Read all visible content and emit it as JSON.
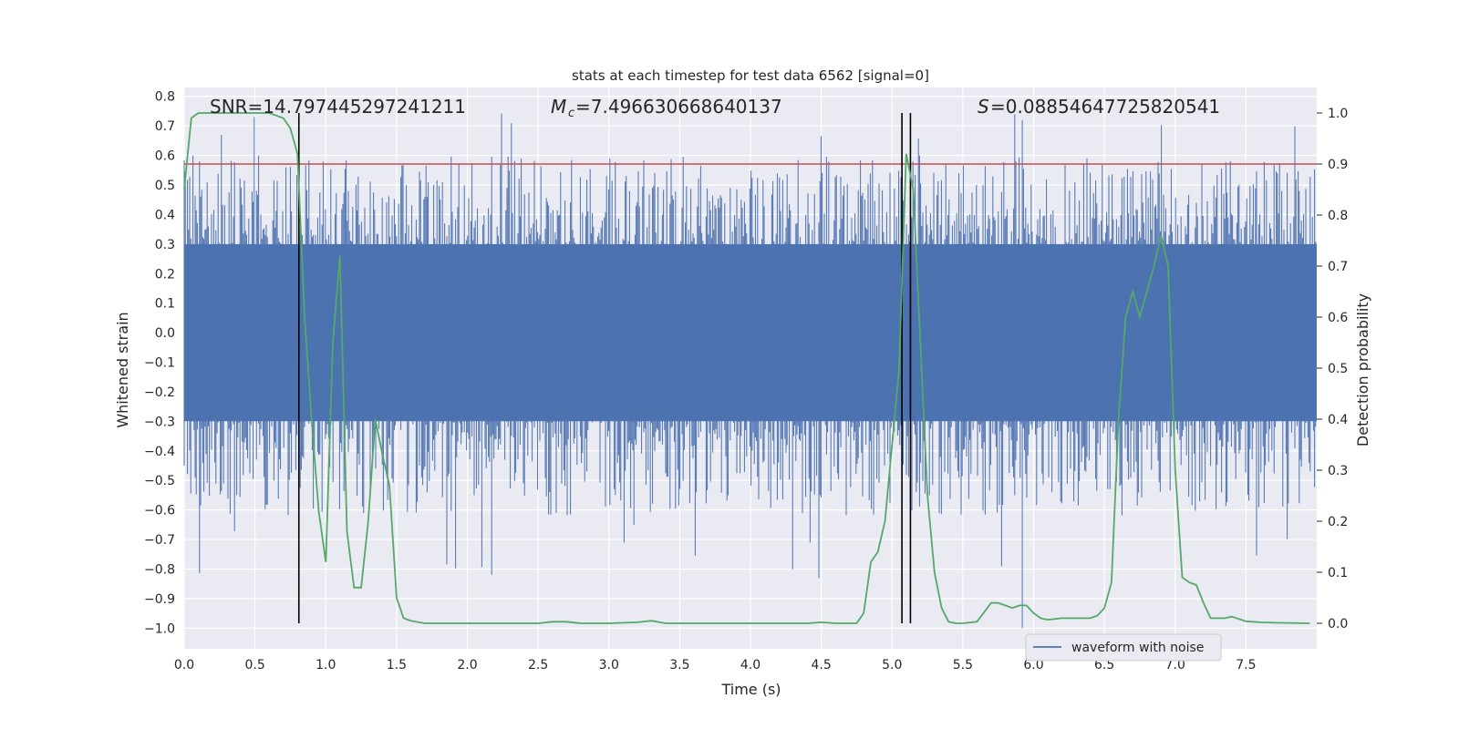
{
  "chart_data": {
    "type": "line",
    "title": "stats at each timestep for test data 6562 [signal=0]",
    "xlabel": "Time (s)",
    "ylabel": "Whitened strain",
    "y2label": "Detection probability",
    "xlim": [
      0.0,
      8.0
    ],
    "ylim": [
      -1.07,
      0.83
    ],
    "y2lim": [
      -0.05,
      1.05
    ],
    "xticks": [
      "0.0",
      "0.5",
      "1.0",
      "1.5",
      "2.0",
      "2.5",
      "3.0",
      "3.5",
      "4.0",
      "4.5",
      "5.0",
      "5.5",
      "6.0",
      "6.5",
      "7.0",
      "7.5"
    ],
    "yticks": [
      "0.8",
      "0.7",
      "0.6",
      "0.5",
      "0.4",
      "0.3",
      "0.2",
      "0.1",
      "0.0",
      "-0.1",
      "-0.2",
      "-0.3",
      "-0.4",
      "-0.5",
      "-0.6",
      "-0.7",
      "-0.8",
      "-0.9",
      "-1.0"
    ],
    "y2ticks": [
      "1.0",
      "0.9",
      "0.8",
      "0.7",
      "0.6",
      "0.5",
      "0.4",
      "0.3",
      "0.2",
      "0.1",
      "0.0"
    ],
    "grid": true,
    "legend": {
      "placement": "lower-right",
      "entries": [
        "waveform with noise"
      ]
    },
    "annotations": {
      "snr": "SNR=14.797445297241211",
      "mc": "=7.496630668640137",
      "s": "=0.08854647725820541"
    },
    "threshold_probability": 0.9,
    "vertical_lines_time": [
      0.81,
      5.07,
      5.13
    ],
    "colors": {
      "waveform": "#4c72b0",
      "probability": "#55a868",
      "threshold": "#c44e52",
      "marker": "#000000",
      "plot_bg": "#eaeaf2"
    },
    "series": [
      {
        "name": "waveform with noise",
        "envelope": {
          "typical_range": [
            -0.3,
            0.3
          ],
          "extreme_range": [
            -1.0,
            0.75
          ]
        }
      },
      {
        "x": [
          0.0,
          0.05,
          0.1,
          0.2,
          0.3,
          0.4,
          0.5,
          0.6,
          0.7,
          0.75,
          0.8,
          0.85,
          0.9,
          0.95,
          1.0,
          1.05,
          1.1,
          1.15,
          1.2,
          1.25,
          1.3,
          1.35,
          1.4,
          1.45,
          1.5,
          1.55,
          1.6,
          1.7,
          1.8,
          2.0,
          2.5,
          2.6,
          2.7,
          2.8,
          3.0,
          3.2,
          3.3,
          3.4,
          3.6,
          4.0,
          4.3,
          4.4,
          4.5,
          4.6,
          4.7,
          4.75,
          4.8,
          4.85,
          4.9,
          4.95,
          5.0,
          5.05,
          5.1,
          5.15,
          5.2,
          5.25,
          5.3,
          5.35,
          5.4,
          5.45,
          5.5,
          5.6,
          5.7,
          5.75,
          5.8,
          5.85,
          5.9,
          5.95,
          6.0,
          6.05,
          6.1,
          6.2,
          6.3,
          6.4,
          6.45,
          6.5,
          6.55,
          6.6,
          6.65,
          6.7,
          6.75,
          6.8,
          6.85,
          6.9,
          6.95,
          7.0,
          7.05,
          7.1,
          7.15,
          7.2,
          7.25,
          7.3,
          7.35,
          7.4,
          7.5,
          7.6,
          7.7,
          7.95
        ],
        "values": [
          0.85,
          0.99,
          1.0,
          1.0,
          1.0,
          1.0,
          1.0,
          1.0,
          0.99,
          0.97,
          0.92,
          0.6,
          0.4,
          0.22,
          0.12,
          0.55,
          0.72,
          0.18,
          0.07,
          0.07,
          0.2,
          0.4,
          0.33,
          0.27,
          0.05,
          0.01,
          0.005,
          0.0,
          0.0,
          0.0,
          0.0,
          0.003,
          0.003,
          0.0,
          0.0,
          0.002,
          0.005,
          0.0,
          0.0,
          0.0,
          0.0,
          0.0,
          0.002,
          0.0,
          0.0,
          0.0,
          0.02,
          0.12,
          0.14,
          0.2,
          0.35,
          0.5,
          0.92,
          0.85,
          0.55,
          0.25,
          0.1,
          0.03,
          0.003,
          0.0,
          0.0,
          0.003,
          0.04,
          0.04,
          0.035,
          0.03,
          0.035,
          0.035,
          0.02,
          0.01,
          0.007,
          0.01,
          0.01,
          0.01,
          0.015,
          0.03,
          0.08,
          0.4,
          0.6,
          0.65,
          0.6,
          0.65,
          0.7,
          0.76,
          0.7,
          0.3,
          0.09,
          0.08,
          0.075,
          0.04,
          0.01,
          0.01,
          0.01,
          0.013,
          0.004,
          0.002,
          0.001,
          0.0
        ]
      }
    ]
  }
}
